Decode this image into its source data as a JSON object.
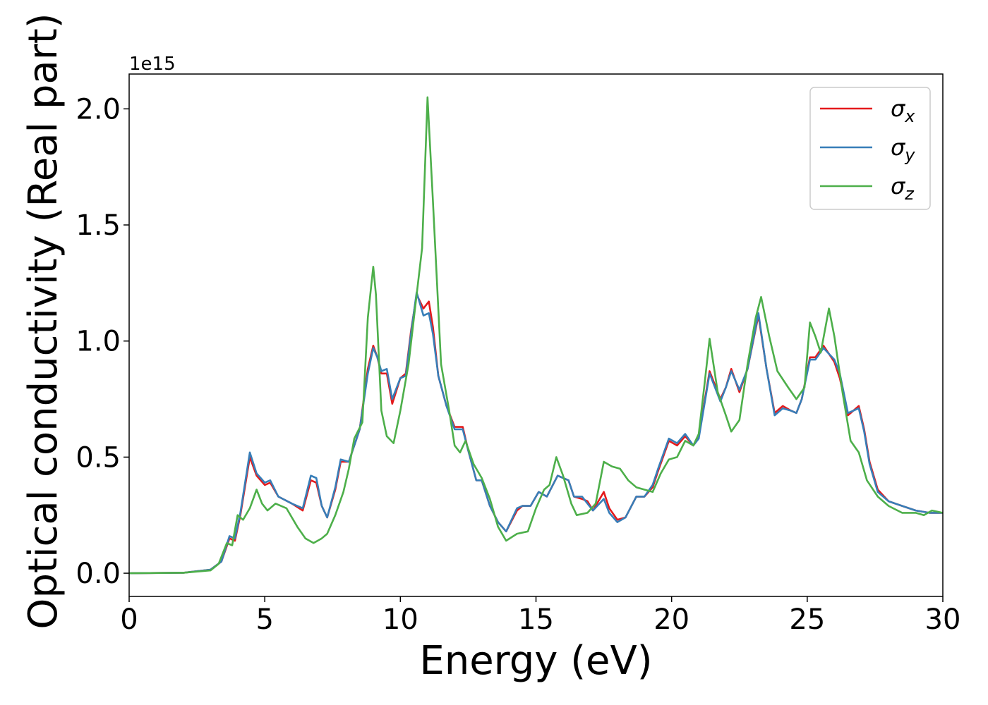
{
  "chart_data": {
    "type": "line",
    "xlabel": "Energy (eV)",
    "ylabel": "Optical conductivity (Real part)",
    "y_offset_label": "1e15",
    "xlim": [
      0,
      30
    ],
    "ylim": [
      -0.1,
      2.15
    ],
    "x_ticks": [
      0,
      5,
      10,
      15,
      20,
      25,
      30
    ],
    "x_tick_labels": [
      "0",
      "5",
      "10",
      "15",
      "20",
      "25",
      "30"
    ],
    "y_ticks": [
      0.0,
      0.5,
      1.0,
      1.5,
      2.0
    ],
    "y_tick_labels": [
      "0.0",
      "0.5",
      "1.0",
      "1.5",
      "2.0"
    ],
    "grid": false,
    "legend_position": "top-right",
    "series": [
      {
        "name": "σx",
        "legend_base": "σ",
        "legend_sub": "x",
        "color": "#e41a1c",
        "points": [
          [
            0,
            0
          ],
          [
            2,
            0.002
          ],
          [
            3,
            0.015
          ],
          [
            3.4,
            0.05
          ],
          [
            3.7,
            0.15
          ],
          [
            3.9,
            0.14
          ],
          [
            4.1,
            0.25
          ],
          [
            4.45,
            0.5
          ],
          [
            4.7,
            0.42
          ],
          [
            5.0,
            0.38
          ],
          [
            5.2,
            0.39
          ],
          [
            5.5,
            0.33
          ],
          [
            6.0,
            0.3
          ],
          [
            6.4,
            0.27
          ],
          [
            6.7,
            0.4
          ],
          [
            6.9,
            0.39
          ],
          [
            7.1,
            0.29
          ],
          [
            7.3,
            0.24
          ],
          [
            7.6,
            0.36
          ],
          [
            7.8,
            0.48
          ],
          [
            8.1,
            0.48
          ],
          [
            8.5,
            0.62
          ],
          [
            8.8,
            0.88
          ],
          [
            9.0,
            0.98
          ],
          [
            9.15,
            0.93
          ],
          [
            9.3,
            0.86
          ],
          [
            9.5,
            0.86
          ],
          [
            9.7,
            0.73
          ],
          [
            10.0,
            0.84
          ],
          [
            10.2,
            0.86
          ],
          [
            10.4,
            1.05
          ],
          [
            10.6,
            1.2
          ],
          [
            10.85,
            1.14
          ],
          [
            11.05,
            1.17
          ],
          [
            11.2,
            1.06
          ],
          [
            11.4,
            0.85
          ],
          [
            11.7,
            0.72
          ],
          [
            12.0,
            0.63
          ],
          [
            12.3,
            0.63
          ],
          [
            12.5,
            0.53
          ],
          [
            12.8,
            0.4
          ],
          [
            13.0,
            0.4
          ],
          [
            13.3,
            0.29
          ],
          [
            13.6,
            0.22
          ],
          [
            13.9,
            0.18
          ],
          [
            14.3,
            0.27
          ],
          [
            14.5,
            0.29
          ],
          [
            14.8,
            0.29
          ],
          [
            15.1,
            0.35
          ],
          [
            15.4,
            0.33
          ],
          [
            15.8,
            0.42
          ],
          [
            16.2,
            0.4
          ],
          [
            16.4,
            0.33
          ],
          [
            16.7,
            0.32
          ],
          [
            16.9,
            0.31
          ],
          [
            17.1,
            0.27
          ],
          [
            17.5,
            0.35
          ],
          [
            17.7,
            0.28
          ],
          [
            18.0,
            0.23
          ],
          [
            18.3,
            0.24
          ],
          [
            18.7,
            0.33
          ],
          [
            19.0,
            0.33
          ],
          [
            19.3,
            0.37
          ],
          [
            19.5,
            0.44
          ],
          [
            19.9,
            0.57
          ],
          [
            20.2,
            0.55
          ],
          [
            20.5,
            0.59
          ],
          [
            20.8,
            0.55
          ],
          [
            21.0,
            0.59
          ],
          [
            21.4,
            0.87
          ],
          [
            21.8,
            0.75
          ],
          [
            22.0,
            0.8
          ],
          [
            22.2,
            0.88
          ],
          [
            22.5,
            0.78
          ],
          [
            22.8,
            0.88
          ],
          [
            23.2,
            1.11
          ],
          [
            23.5,
            0.88
          ],
          [
            23.8,
            0.69
          ],
          [
            24.1,
            0.72
          ],
          [
            24.4,
            0.7
          ],
          [
            24.6,
            0.69
          ],
          [
            24.8,
            0.75
          ],
          [
            25.1,
            0.93
          ],
          [
            25.3,
            0.93
          ],
          [
            25.6,
            0.98
          ],
          [
            26.0,
            0.91
          ],
          [
            26.2,
            0.84
          ],
          [
            26.5,
            0.68
          ],
          [
            26.9,
            0.72
          ],
          [
            27.1,
            0.62
          ],
          [
            27.3,
            0.48
          ],
          [
            27.6,
            0.36
          ],
          [
            28.0,
            0.31
          ],
          [
            28.5,
            0.29
          ],
          [
            29.0,
            0.27
          ],
          [
            29.5,
            0.26
          ],
          [
            30.0,
            0.26
          ]
        ]
      },
      {
        "name": "σy",
        "legend_base": "σ",
        "legend_sub": "y",
        "color": "#377eb8",
        "points": [
          [
            0,
            0
          ],
          [
            2,
            0.002
          ],
          [
            3,
            0.015
          ],
          [
            3.4,
            0.05
          ],
          [
            3.7,
            0.16
          ],
          [
            3.9,
            0.15
          ],
          [
            4.1,
            0.26
          ],
          [
            4.45,
            0.52
          ],
          [
            4.7,
            0.43
          ],
          [
            5.0,
            0.39
          ],
          [
            5.2,
            0.4
          ],
          [
            5.5,
            0.33
          ],
          [
            6.0,
            0.3
          ],
          [
            6.4,
            0.28
          ],
          [
            6.7,
            0.42
          ],
          [
            6.9,
            0.41
          ],
          [
            7.1,
            0.29
          ],
          [
            7.3,
            0.24
          ],
          [
            7.6,
            0.37
          ],
          [
            7.8,
            0.49
          ],
          [
            8.1,
            0.48
          ],
          [
            8.5,
            0.62
          ],
          [
            8.8,
            0.86
          ],
          [
            9.0,
            0.97
          ],
          [
            9.15,
            0.93
          ],
          [
            9.3,
            0.87
          ],
          [
            9.5,
            0.88
          ],
          [
            9.7,
            0.75
          ],
          [
            10.0,
            0.84
          ],
          [
            10.2,
            0.85
          ],
          [
            10.4,
            1.04
          ],
          [
            10.6,
            1.21
          ],
          [
            10.85,
            1.11
          ],
          [
            11.05,
            1.12
          ],
          [
            11.2,
            1.03
          ],
          [
            11.4,
            0.85
          ],
          [
            11.7,
            0.72
          ],
          [
            12.0,
            0.62
          ],
          [
            12.3,
            0.62
          ],
          [
            12.5,
            0.53
          ],
          [
            12.8,
            0.4
          ],
          [
            13.0,
            0.4
          ],
          [
            13.3,
            0.29
          ],
          [
            13.6,
            0.22
          ],
          [
            13.9,
            0.18
          ],
          [
            14.3,
            0.28
          ],
          [
            14.5,
            0.29
          ],
          [
            14.8,
            0.29
          ],
          [
            15.1,
            0.35
          ],
          [
            15.4,
            0.33
          ],
          [
            15.8,
            0.42
          ],
          [
            16.2,
            0.4
          ],
          [
            16.4,
            0.33
          ],
          [
            16.7,
            0.33
          ],
          [
            16.9,
            0.3
          ],
          [
            17.1,
            0.27
          ],
          [
            17.5,
            0.32
          ],
          [
            17.7,
            0.26
          ],
          [
            18.0,
            0.22
          ],
          [
            18.3,
            0.24
          ],
          [
            18.7,
            0.33
          ],
          [
            19.0,
            0.33
          ],
          [
            19.3,
            0.38
          ],
          [
            19.5,
            0.45
          ],
          [
            19.9,
            0.58
          ],
          [
            20.2,
            0.56
          ],
          [
            20.5,
            0.6
          ],
          [
            20.8,
            0.55
          ],
          [
            21.0,
            0.58
          ],
          [
            21.4,
            0.86
          ],
          [
            21.8,
            0.74
          ],
          [
            22.0,
            0.8
          ],
          [
            22.2,
            0.87
          ],
          [
            22.5,
            0.79
          ],
          [
            22.8,
            0.88
          ],
          [
            23.2,
            1.12
          ],
          [
            23.5,
            0.88
          ],
          [
            23.8,
            0.68
          ],
          [
            24.1,
            0.71
          ],
          [
            24.4,
            0.7
          ],
          [
            24.6,
            0.69
          ],
          [
            24.8,
            0.75
          ],
          [
            25.1,
            0.92
          ],
          [
            25.3,
            0.92
          ],
          [
            25.6,
            0.97
          ],
          [
            26.0,
            0.92
          ],
          [
            26.2,
            0.86
          ],
          [
            26.5,
            0.69
          ],
          [
            26.9,
            0.71
          ],
          [
            27.1,
            0.61
          ],
          [
            27.3,
            0.47
          ],
          [
            27.6,
            0.35
          ],
          [
            28.0,
            0.31
          ],
          [
            28.5,
            0.29
          ],
          [
            29.0,
            0.27
          ],
          [
            29.5,
            0.26
          ],
          [
            30.0,
            0.26
          ]
        ]
      },
      {
        "name": "σz",
        "legend_base": "σ",
        "legend_sub": "z",
        "color": "#4daf4a",
        "points": [
          [
            0,
            0
          ],
          [
            2,
            0.002
          ],
          [
            3,
            0.012
          ],
          [
            3.3,
            0.04
          ],
          [
            3.6,
            0.13
          ],
          [
            3.8,
            0.12
          ],
          [
            4.0,
            0.25
          ],
          [
            4.2,
            0.23
          ],
          [
            4.45,
            0.28
          ],
          [
            4.7,
            0.36
          ],
          [
            4.9,
            0.3
          ],
          [
            5.1,
            0.27
          ],
          [
            5.4,
            0.3
          ],
          [
            5.8,
            0.28
          ],
          [
            6.2,
            0.2
          ],
          [
            6.5,
            0.15
          ],
          [
            6.8,
            0.13
          ],
          [
            7.1,
            0.15
          ],
          [
            7.3,
            0.17
          ],
          [
            7.6,
            0.25
          ],
          [
            7.9,
            0.35
          ],
          [
            8.1,
            0.45
          ],
          [
            8.3,
            0.58
          ],
          [
            8.6,
            0.65
          ],
          [
            8.8,
            1.1
          ],
          [
            9.0,
            1.32
          ],
          [
            9.1,
            1.2
          ],
          [
            9.3,
            0.7
          ],
          [
            9.5,
            0.59
          ],
          [
            9.75,
            0.56
          ],
          [
            10.0,
            0.7
          ],
          [
            10.3,
            0.9
          ],
          [
            10.6,
            1.2
          ],
          [
            10.8,
            1.4
          ],
          [
            11.0,
            2.05
          ],
          [
            11.2,
            1.6
          ],
          [
            11.5,
            0.9
          ],
          [
            11.8,
            0.7
          ],
          [
            12.0,
            0.55
          ],
          [
            12.2,
            0.52
          ],
          [
            12.4,
            0.57
          ],
          [
            12.7,
            0.47
          ],
          [
            13.0,
            0.41
          ],
          [
            13.3,
            0.32
          ],
          [
            13.6,
            0.2
          ],
          [
            13.9,
            0.14
          ],
          [
            14.3,
            0.17
          ],
          [
            14.7,
            0.18
          ],
          [
            15.0,
            0.28
          ],
          [
            15.3,
            0.36
          ],
          [
            15.5,
            0.38
          ],
          [
            15.75,
            0.5
          ],
          [
            16.0,
            0.42
          ],
          [
            16.3,
            0.3
          ],
          [
            16.5,
            0.25
          ],
          [
            16.9,
            0.26
          ],
          [
            17.2,
            0.3
          ],
          [
            17.5,
            0.48
          ],
          [
            17.8,
            0.46
          ],
          [
            18.1,
            0.45
          ],
          [
            18.4,
            0.4
          ],
          [
            18.7,
            0.37
          ],
          [
            19.0,
            0.36
          ],
          [
            19.3,
            0.35
          ],
          [
            19.6,
            0.43
          ],
          [
            19.9,
            0.49
          ],
          [
            20.2,
            0.5
          ],
          [
            20.5,
            0.57
          ],
          [
            20.8,
            0.55
          ],
          [
            21.0,
            0.6
          ],
          [
            21.2,
            0.8
          ],
          [
            21.4,
            1.01
          ],
          [
            21.7,
            0.78
          ],
          [
            22.0,
            0.68
          ],
          [
            22.2,
            0.61
          ],
          [
            22.5,
            0.66
          ],
          [
            22.8,
            0.9
          ],
          [
            23.1,
            1.1
          ],
          [
            23.3,
            1.19
          ],
          [
            23.6,
            1.02
          ],
          [
            23.9,
            0.87
          ],
          [
            24.3,
            0.8
          ],
          [
            24.6,
            0.75
          ],
          [
            24.9,
            0.8
          ],
          [
            25.1,
            1.08
          ],
          [
            25.3,
            1.02
          ],
          [
            25.5,
            0.95
          ],
          [
            25.8,
            1.14
          ],
          [
            26.0,
            1.02
          ],
          [
            26.3,
            0.78
          ],
          [
            26.6,
            0.57
          ],
          [
            26.9,
            0.52
          ],
          [
            27.2,
            0.4
          ],
          [
            27.6,
            0.33
          ],
          [
            28.0,
            0.29
          ],
          [
            28.5,
            0.26
          ],
          [
            29.0,
            0.26
          ],
          [
            29.3,
            0.25
          ],
          [
            29.6,
            0.27
          ],
          [
            30.0,
            0.26
          ]
        ]
      }
    ]
  }
}
